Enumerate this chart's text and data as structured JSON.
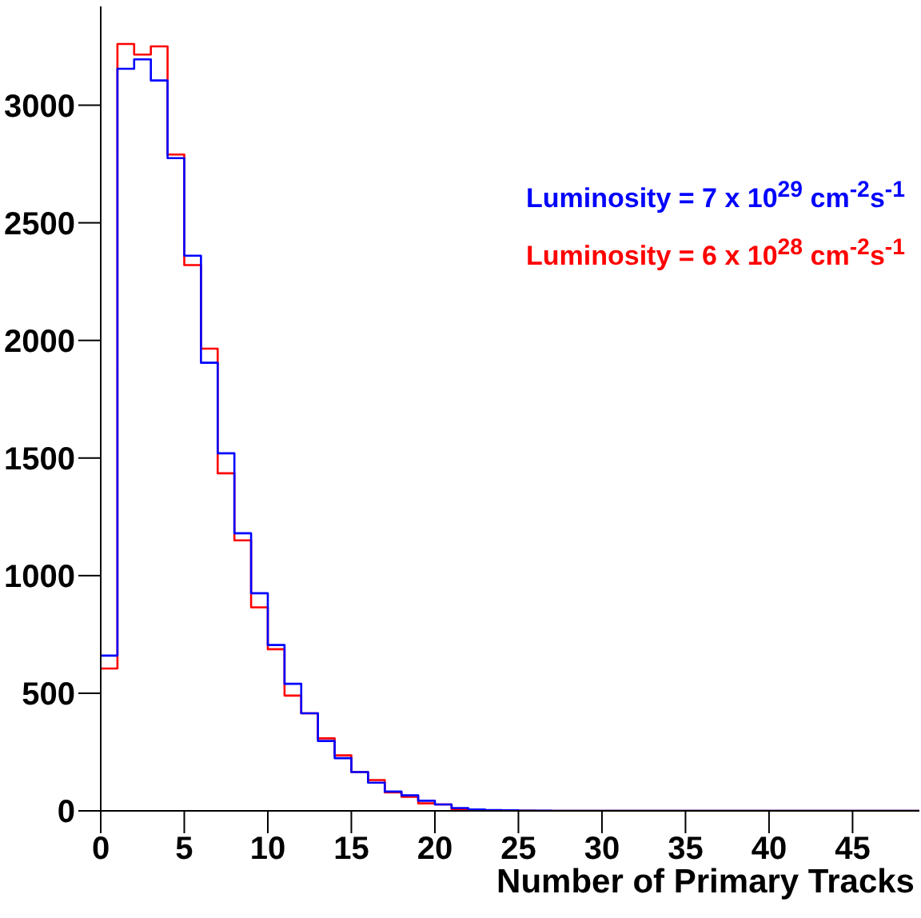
{
  "chart_data": {
    "type": "histogram",
    "xlabel": "Number of Primary Tracks",
    "bins": [
      0,
      1,
      2,
      3,
      4,
      5,
      6,
      7,
      8,
      9,
      10,
      11,
      12,
      13,
      14,
      15,
      16,
      17,
      18,
      19,
      20,
      21,
      22,
      23,
      24,
      25,
      26,
      27,
      28,
      29,
      30,
      31,
      32,
      33,
      34,
      35,
      36,
      37,
      38,
      39,
      40,
      41,
      42,
      43,
      44,
      45,
      46,
      47,
      48,
      49
    ],
    "series": [
      {
        "name": "Luminosity = 7 x 10$^{29}$ cm$^{-2}$s$^{-1}$",
        "color": "#0000ff",
        "values": [
          660,
          3155,
          3195,
          3105,
          2775,
          2360,
          1905,
          1520,
          1180,
          925,
          705,
          540,
          415,
          297,
          224,
          165,
          120,
          82,
          66,
          43,
          27,
          12,
          6,
          3,
          2,
          1,
          1,
          0,
          0,
          0,
          0,
          0,
          0,
          0,
          0,
          0,
          0,
          0,
          0,
          0,
          0,
          0,
          0,
          0,
          0,
          0,
          0,
          0,
          0
        ]
      },
      {
        "name": "Luminosity = 6 x 10$^{28}$ cm$^{-2}$s$^{-1}$",
        "color": "#ff0000",
        "values": [
          605,
          3260,
          3215,
          3250,
          2790,
          2320,
          1965,
          1435,
          1150,
          865,
          687,
          490,
          415,
          308,
          236,
          165,
          131,
          78,
          60,
          32,
          27,
          7,
          4,
          2,
          1,
          1,
          0,
          0,
          0,
          0,
          0,
          0,
          0,
          0,
          0,
          0,
          0,
          0,
          0,
          0,
          0,
          0,
          0,
          0,
          0,
          0,
          0,
          0,
          0
        ]
      }
    ],
    "xlim": [
      0,
      49
    ],
    "xticks": [
      0,
      5,
      10,
      15,
      20,
      25,
      30,
      35,
      40,
      45
    ],
    "ylim": [
      0,
      3420
    ],
    "yticks": [
      0,
      500,
      1000,
      1500,
      2000,
      2500,
      3000
    ],
    "grid": false,
    "legend": "top right"
  }
}
